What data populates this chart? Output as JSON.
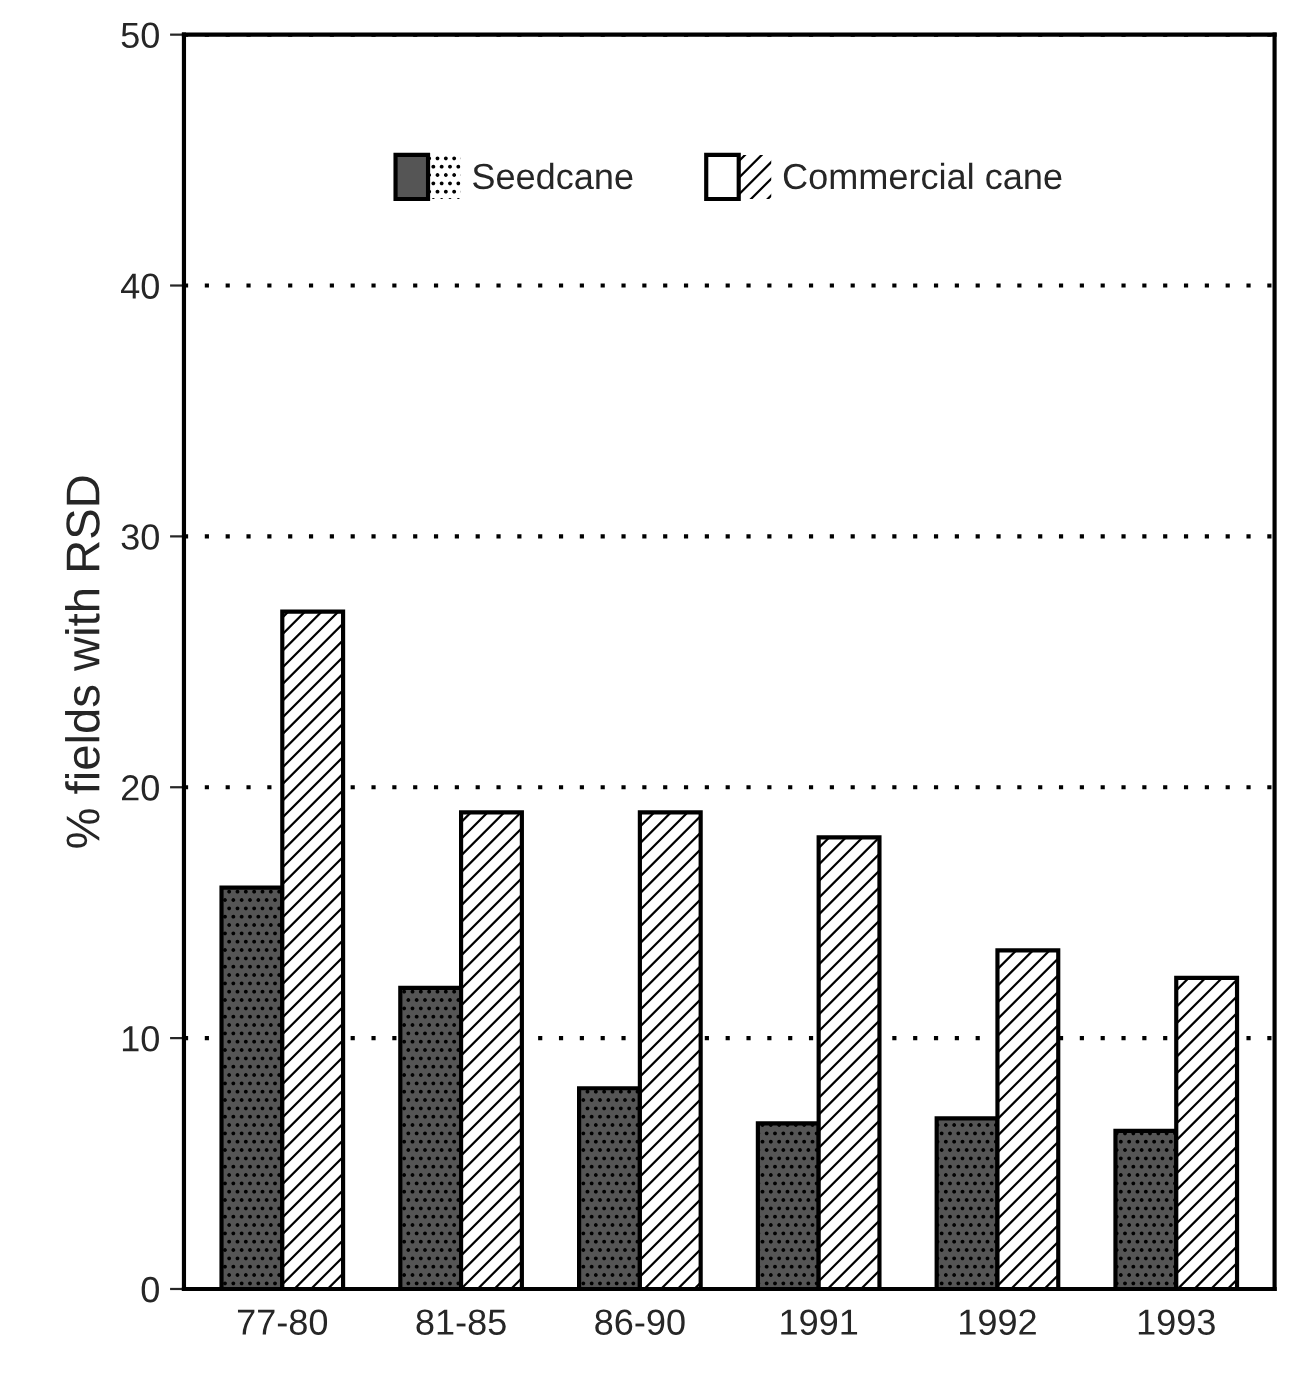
{
  "chart_data": {
    "type": "bar",
    "ylabel": "% fields with RSD",
    "categories": [
      "77-80",
      "81-85",
      "86-90",
      "1991",
      "1992",
      "1993"
    ],
    "series": [
      {
        "name": "Seedcane",
        "color": "#555555",
        "values": [
          16,
          12,
          8,
          6.6,
          6.8,
          6.3
        ]
      },
      {
        "name": "Commercial cane",
        "color": "#ffffff",
        "values": [
          27,
          19,
          19,
          18,
          13.5,
          12.4
        ]
      }
    ],
    "ylim": [
      0,
      50
    ],
    "yticks": [
      0,
      10,
      20,
      30,
      40,
      50
    ],
    "grid": "y",
    "legend": "top"
  }
}
